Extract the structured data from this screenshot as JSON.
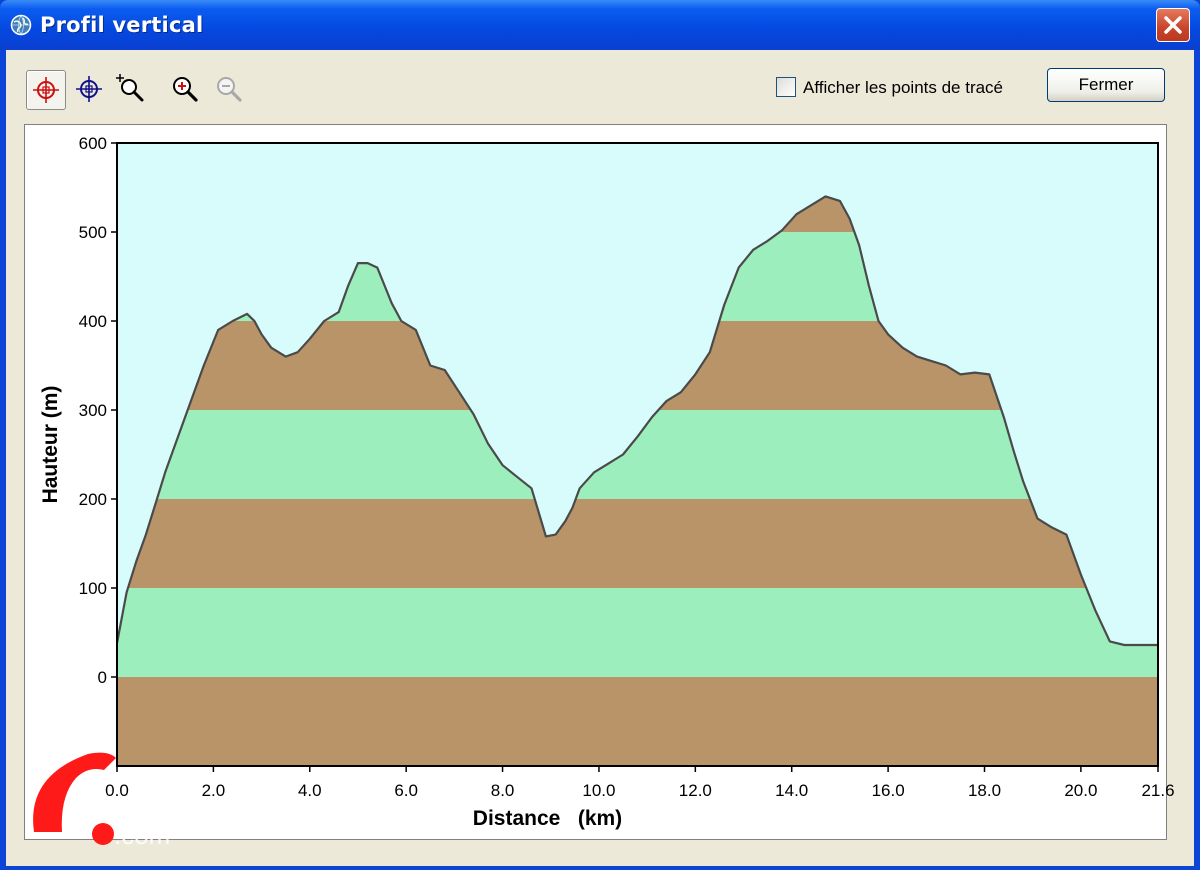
{
  "window": {
    "title": "Profil vertical",
    "icons": {
      "app": "globe-icon",
      "close": "close-icon"
    }
  },
  "toolbar": {
    "tools": [
      {
        "name": "crosshair-red-icon",
        "active": true
      },
      {
        "name": "crosshair-blue-icon",
        "active": false
      },
      {
        "name": "zoom-region-icon",
        "active": false
      },
      {
        "name": "zoom-in-icon",
        "active": false
      },
      {
        "name": "zoom-out-icon",
        "active": false,
        "disabled": true
      }
    ],
    "show_points_label": "Afficher les points de tracé",
    "show_points_checked": false,
    "close_label": "Fermer"
  },
  "colors": {
    "sky": "#d8fcfc",
    "band_brown": "#b99468",
    "band_green": "#9cefbd",
    "profile_line": "#4a4a4a",
    "title_bar": "#0a4fe0"
  },
  "chart_data": {
    "type": "area",
    "xlabel": "Distance   (km)",
    "ylabel": "Hauteur (m)",
    "xlim": [
      0,
      21.6
    ],
    "ylim": [
      -100,
      600
    ],
    "x_ticks": [
      "0.0",
      "2.0",
      "4.0",
      "6.0",
      "8.0",
      "10.0",
      "12.0",
      "14.0",
      "16.0",
      "18.0",
      "20.0",
      "21.6"
    ],
    "y_ticks": [
      "600",
      "500",
      "400",
      "300",
      "200",
      "100",
      "0"
    ],
    "bands": [
      {
        "from": -100,
        "to": 0,
        "color": "brown"
      },
      {
        "from": 0,
        "to": 100,
        "color": "green"
      },
      {
        "from": 100,
        "to": 200,
        "color": "brown"
      },
      {
        "from": 200,
        "to": 300,
        "color": "green"
      },
      {
        "from": 300,
        "to": 400,
        "color": "brown"
      },
      {
        "from": 400,
        "to": 500,
        "color": "green"
      },
      {
        "from": 500,
        "to": 600,
        "color": "brown"
      }
    ],
    "x": [
      0.0,
      0.2,
      0.4,
      0.6,
      0.8,
      1.0,
      1.2,
      1.5,
      1.8,
      2.1,
      2.4,
      2.7,
      2.85,
      3.0,
      3.2,
      3.5,
      3.75,
      4.0,
      4.3,
      4.6,
      4.8,
      5.0,
      5.2,
      5.4,
      5.7,
      5.9,
      6.2,
      6.5,
      6.8,
      7.1,
      7.4,
      7.7,
      8.0,
      8.3,
      8.6,
      8.9,
      9.1,
      9.3,
      9.45,
      9.6,
      9.9,
      10.2,
      10.5,
      10.8,
      11.1,
      11.4,
      11.7,
      12.0,
      12.3,
      12.6,
      12.9,
      13.2,
      13.5,
      13.8,
      14.1,
      14.4,
      14.7,
      15.0,
      15.2,
      15.4,
      15.6,
      15.8,
      16.0,
      16.3,
      16.6,
      16.9,
      17.2,
      17.5,
      17.8,
      18.1,
      18.4,
      18.6,
      18.8,
      19.1,
      19.4,
      19.7,
      20.0,
      20.3,
      20.6,
      20.9,
      21.1,
      21.3,
      21.5,
      21.6
    ],
    "y": [
      38,
      95,
      130,
      160,
      195,
      230,
      260,
      305,
      350,
      390,
      400,
      408,
      400,
      385,
      370,
      360,
      365,
      380,
      400,
      410,
      440,
      465,
      465,
      460,
      420,
      400,
      390,
      350,
      345,
      320,
      295,
      262,
      238,
      225,
      212,
      158,
      160,
      175,
      190,
      212,
      230,
      240,
      250,
      270,
      292,
      310,
      320,
      340,
      365,
      418,
      460,
      480,
      490,
      502,
      520,
      530,
      540,
      535,
      515,
      485,
      440,
      400,
      385,
      370,
      360,
      355,
      350,
      340,
      342,
      340,
      292,
      255,
      220,
      178,
      168,
      160,
      115,
      75,
      40,
      36,
      36,
      36,
      36,
      36
    ]
  },
  "watermark": {
    "text": ".com"
  }
}
